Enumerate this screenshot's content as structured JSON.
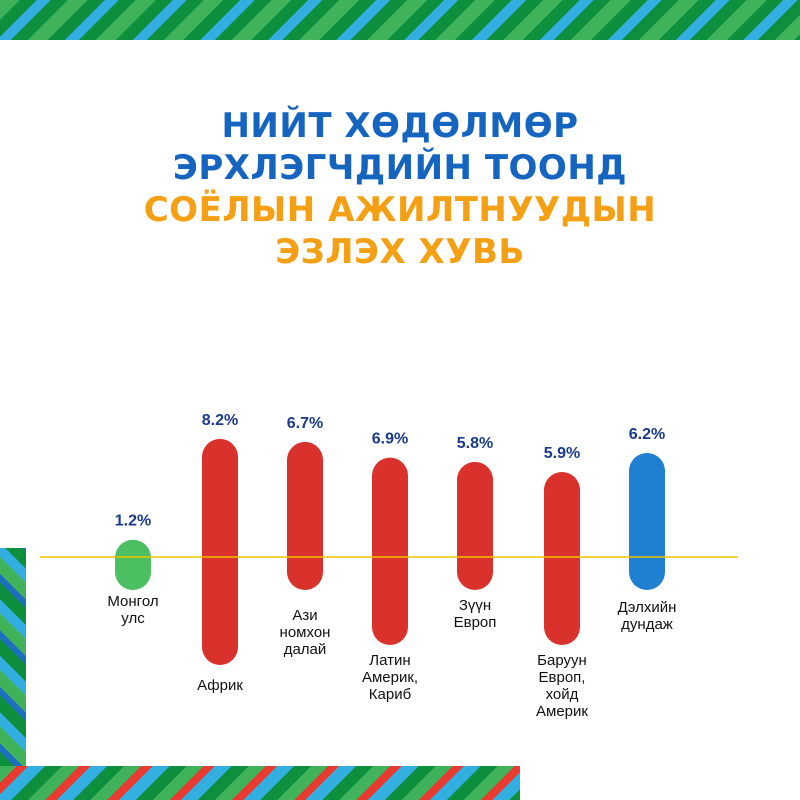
{
  "title": {
    "line1": "НИЙТ ХӨДӨЛМӨР",
    "line2": "ЭРХЛЭГЧДИЙН ТООНД",
    "line3": "СОЁЛЫН АЖИЛТНУУДЫН",
    "line4": "ЭЗЛЭХ ХУВЬ"
  },
  "colors": {
    "title_blue": "#1565c0",
    "title_orange": "#f5a014",
    "value_label": "#1a3a8a",
    "green_bar": "#4cbf62",
    "red_bar": "#d9312b",
    "blue_bar": "#1f7fd0",
    "axis_line": "#f2c200"
  },
  "chart_data": {
    "type": "bar",
    "unit": "%",
    "categories": [
      [
        "Монгол",
        "улс"
      ],
      [
        "Африк"
      ],
      [
        "Ази",
        "номхон",
        "далай"
      ],
      [
        "Латин",
        "Америк,",
        "Кариб"
      ],
      [
        "Зүүн",
        "Европ"
      ],
      [
        "Баруун",
        "Европ,",
        "хойд",
        "Америк"
      ],
      [
        "Дэлхийн",
        "дундаж"
      ]
    ],
    "values": [
      1.2,
      8.2,
      6.7,
      6.9,
      5.8,
      5.9,
      6.2
    ],
    "value_labels": [
      "1.2%",
      "8.2%",
      "6.7%",
      "6.9%",
      "5.8%",
      "5.9%",
      "6.2%"
    ],
    "bar_colors": [
      "#4cbf62",
      "#d9312b",
      "#d9312b",
      "#d9312b",
      "#d9312b",
      "#d9312b",
      "#1f7fd0"
    ],
    "grid": false,
    "legend": "none"
  }
}
